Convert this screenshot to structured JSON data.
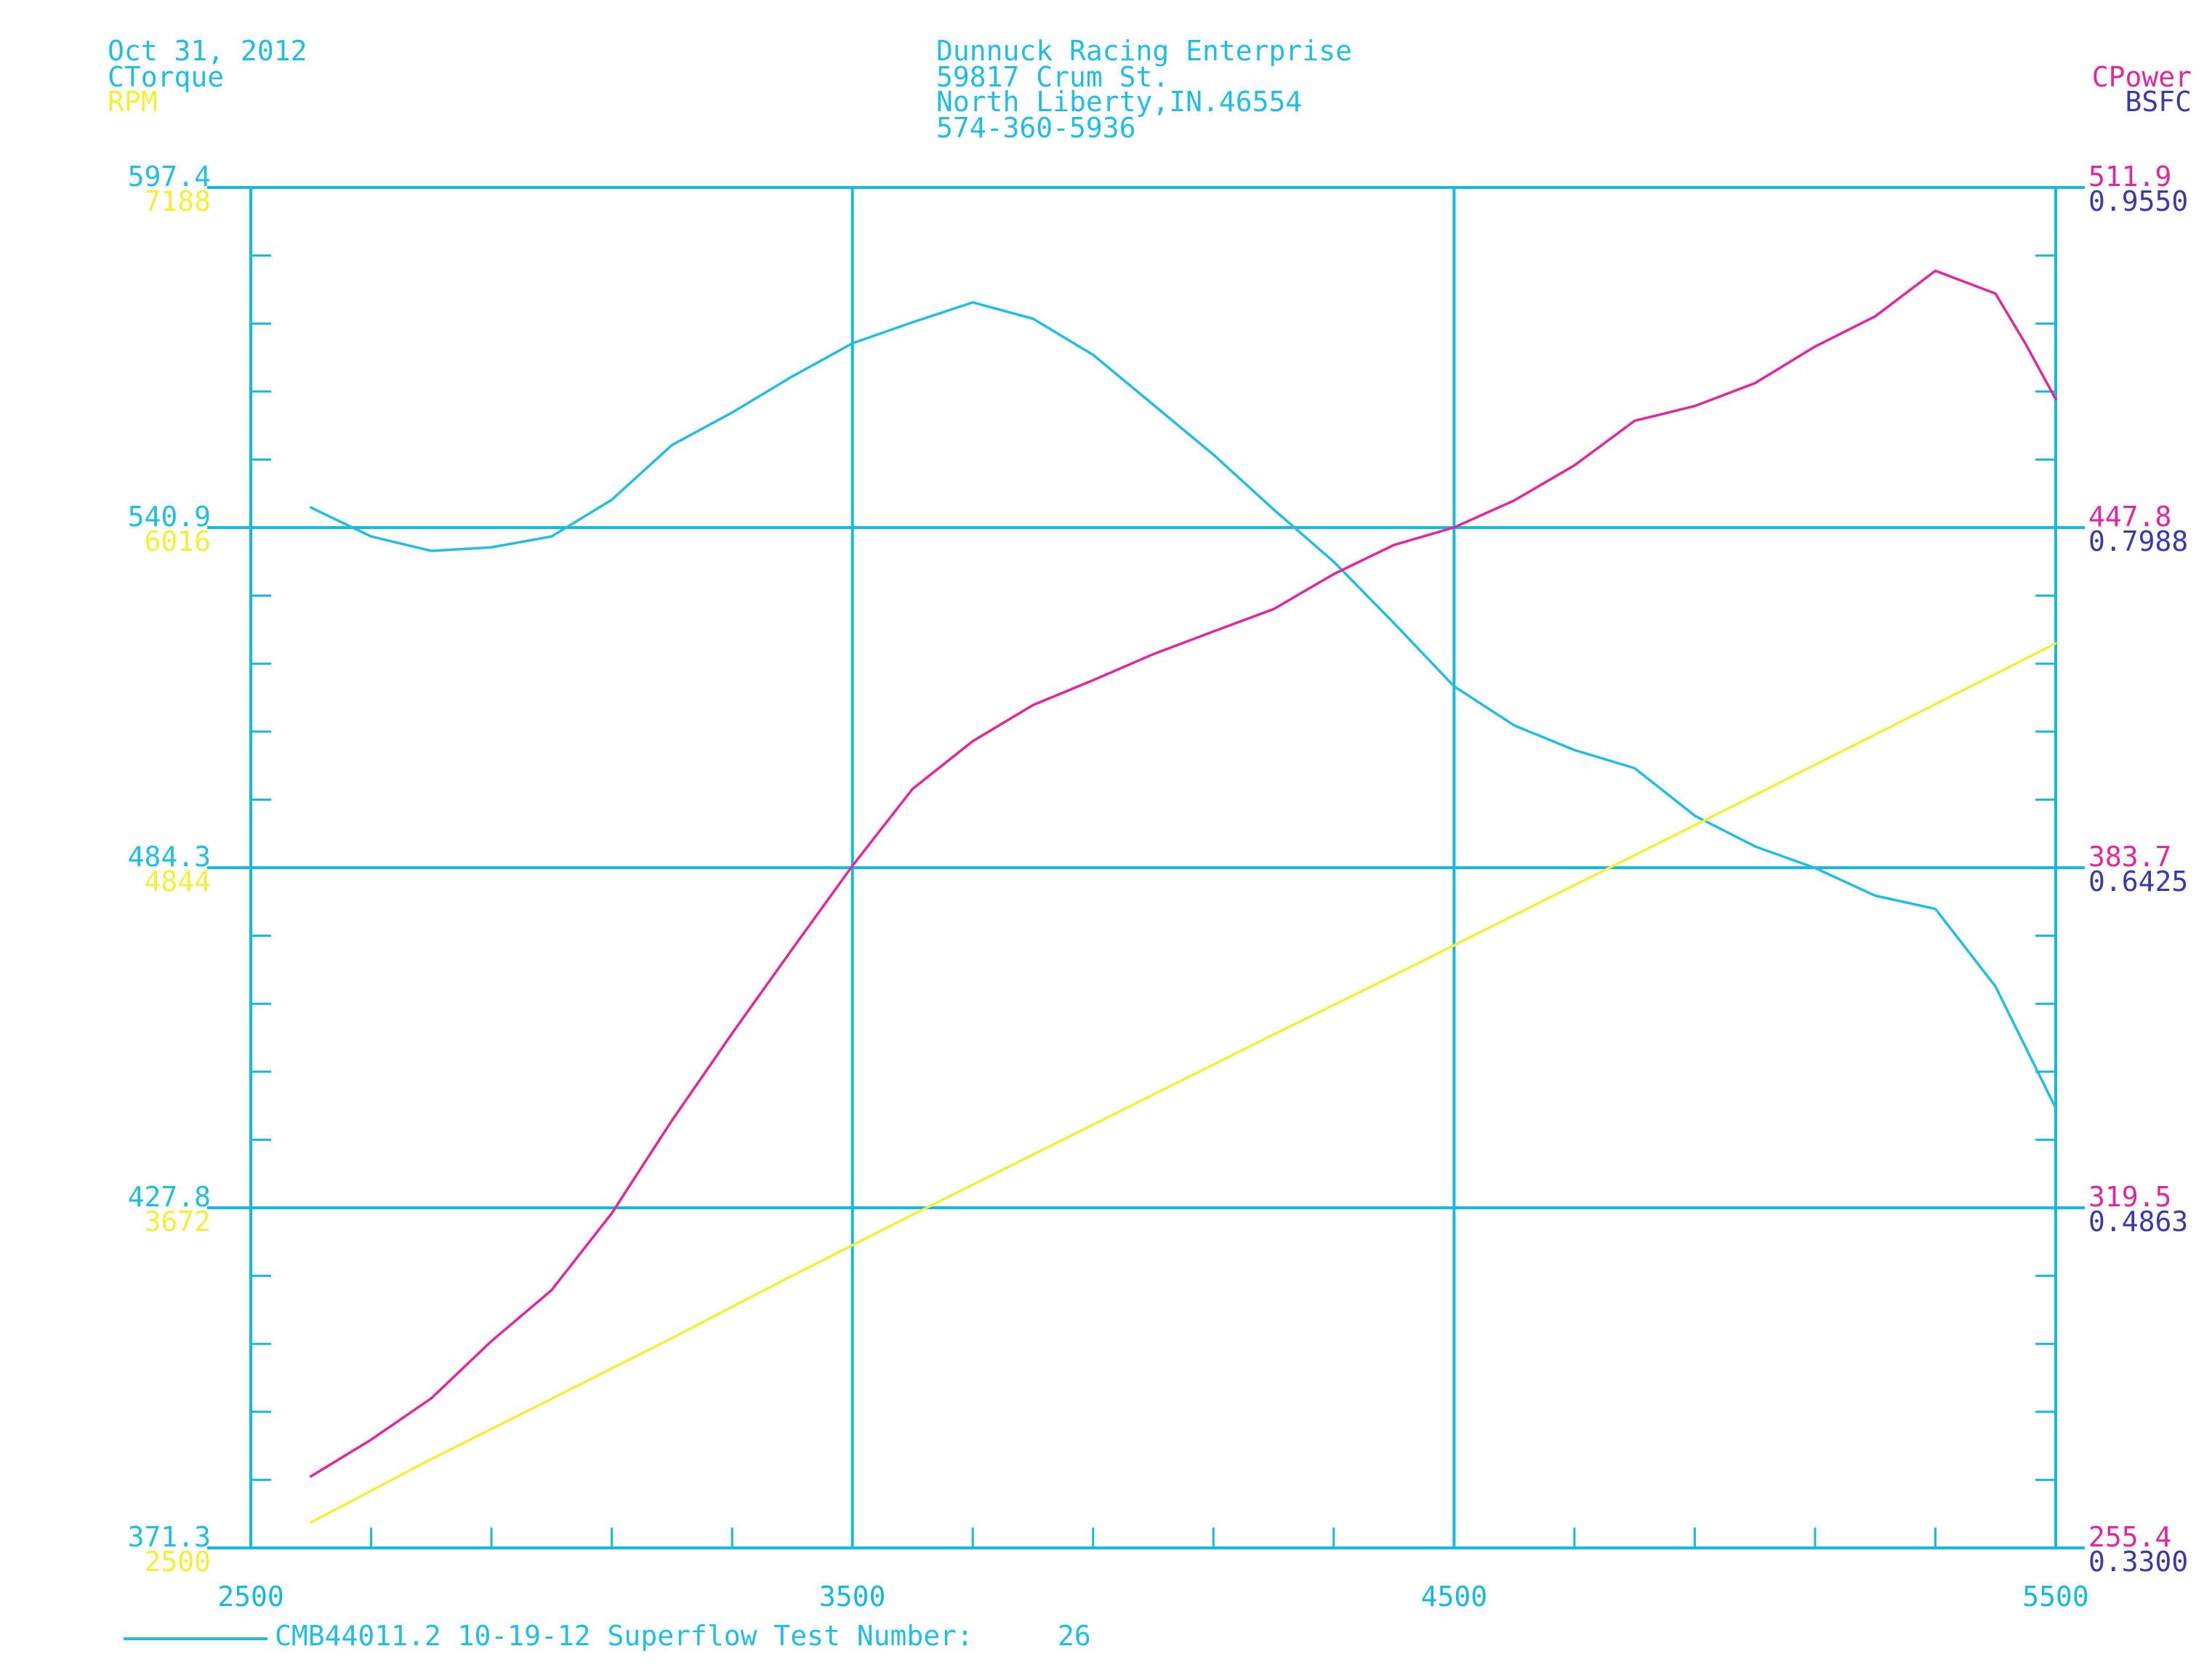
{
  "header": {
    "date": "Oct 31, 2012",
    "left_label_1": "CTorque",
    "left_label_2": "RPM",
    "company_lines": [
      "Dunnuck Racing Enterprise",
      "59817 Crum St.",
      "North Liberty,IN.46554",
      "574-360-5936"
    ],
    "right_label_1": "CPower",
    "right_label_2": "BSFC"
  },
  "footer": {
    "legend_text": "CMB44011.2 10-19-12 Superflow Test Number:",
    "test_number": "26"
  },
  "colors": {
    "grid": "#17b8e0",
    "torque": "#22bde3",
    "rpm": "#f2ee3a",
    "power": "#e0279b",
    "bsfc": "#3a3aa8"
  },
  "chart_data": {
    "type": "line",
    "title": "",
    "xlabel": "",
    "xlim": [
      2500,
      5500
    ],
    "x_ticks": [
      "2500",
      "3500",
      "4500",
      "5500"
    ],
    "y_axes": {
      "ctorque": {
        "ticks": [
          "597.4",
          "540.9",
          "484.3",
          "427.8",
          "371.3"
        ],
        "range": [
          371.3,
          597.4
        ]
      },
      "rpm": {
        "ticks": [
          "7188",
          "6016",
          "4844",
          "3672",
          "2500"
        ],
        "range": [
          2500,
          7188
        ]
      },
      "cpower": {
        "ticks": [
          "511.9",
          "447.8",
          "383.7",
          "319.5",
          "255.4"
        ],
        "range": [
          255.4,
          511.9
        ]
      },
      "bsfc": {
        "ticks": [
          "0.9550",
          "0.7988",
          "0.6425",
          "0.4863",
          "0.3300"
        ],
        "range": [
          0.33,
          0.955
        ]
      }
    },
    "grid": true,
    "series": [
      {
        "name": "CTorque",
        "axis": "ctorque",
        "x": [
          2600,
          2700,
          2800,
          2900,
          3000,
          3100,
          3200,
          3300,
          3400,
          3500,
          3600,
          3700,
          3800,
          3900,
          4000,
          4100,
          4200,
          4300,
          4400,
          4500,
          4600,
          4700,
          4800,
          4900,
          5000,
          5100,
          5200,
          5300,
          5400,
          5500
        ],
        "y": [
          544.2,
          539.4,
          537.0,
          537.6,
          539.4,
          545.5,
          554.6,
          560.0,
          566.0,
          571.5,
          575.0,
          578.3,
          575.6,
          569.6,
          561.3,
          553.0,
          543.9,
          535.2,
          525.0,
          514.5,
          508.0,
          503.9,
          500.9,
          493.0,
          487.9,
          484.3,
          479.7,
          477.5,
          464.6,
          444.4
        ]
      },
      {
        "name": "RPM",
        "axis": "rpm",
        "x": [
          2600,
          2800,
          3000,
          3200,
          3400,
          3600,
          3800,
          4000,
          4200,
          4400,
          4600,
          4800,
          5000,
          5200,
          5400,
          5500
        ],
        "y": [
          2588,
          2806,
          3014,
          3223,
          3438,
          3648,
          3855,
          4062,
          4269,
          4473,
          4680,
          4887,
          5094,
          5303,
          5512,
          5617
        ]
      },
      {
        "name": "CPower",
        "axis": "cpower",
        "x": [
          2600,
          2700,
          2800,
          2900,
          3000,
          3100,
          3200,
          3300,
          3400,
          3500,
          3600,
          3700,
          3800,
          3900,
          4000,
          4100,
          4200,
          4300,
          4400,
          4500,
          4600,
          4700,
          4800,
          4900,
          5000,
          5100,
          5200,
          5300,
          5400,
          5450,
          5500
        ],
        "y": [
          268.9,
          275.8,
          283.6,
          294.4,
          304.0,
          318.5,
          336.0,
          352.4,
          368.3,
          384.0,
          398.5,
          407.5,
          414.3,
          419.0,
          423.9,
          428.2,
          432.4,
          439.0,
          444.5,
          447.8,
          452.9,
          459.5,
          467.9,
          470.7,
          475.0,
          481.9,
          487.6,
          496.2,
          491.9,
          482.4,
          472.0
        ]
      }
    ]
  }
}
